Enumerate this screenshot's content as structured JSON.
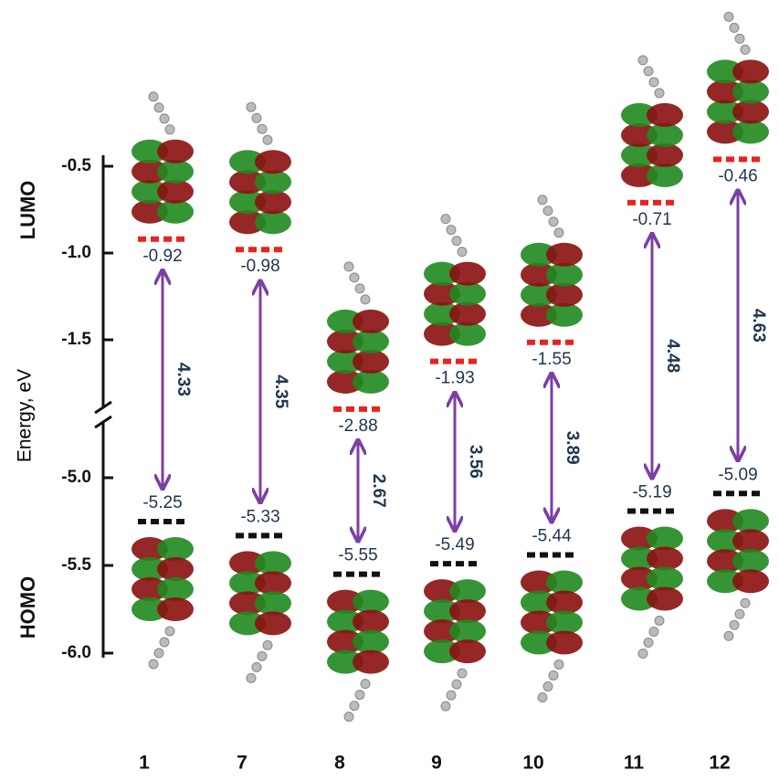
{
  "chart_data": {
    "type": "energy-levels",
    "y_axis_label": "Energy, eV",
    "upper_label": "LUMO",
    "lower_label": "HOMO",
    "ylim": [
      -6.0,
      -0.3
    ],
    "axis_break": [
      -3.0,
      -5.0
    ],
    "yticks": [
      {
        "value": -6.0,
        "label": "-6.0"
      },
      {
        "value": -5.5,
        "label": "-5.5"
      },
      {
        "value": -5.0,
        "label": "-5.0"
      },
      {
        "value": -1.5,
        "label": "-1.5"
      },
      {
        "value": -1.0,
        "label": "-1.0"
      },
      {
        "value": -0.5,
        "label": "-0.5"
      }
    ],
    "categories": [
      "1",
      "7",
      "8",
      "9",
      "10",
      "11",
      "12"
    ],
    "series": [
      {
        "name": "LUMO",
        "color": "#e8231f",
        "values": [
          -0.92,
          -0.98,
          -2.88,
          -1.93,
          -1.55,
          -0.71,
          -0.46
        ]
      },
      {
        "name": "HOMO",
        "color": "#111111",
        "values": [
          -5.25,
          -5.33,
          -5.55,
          -5.49,
          -5.44,
          -5.19,
          -5.09
        ]
      }
    ],
    "gaps": {
      "color": "#7b3fa6",
      "values": [
        4.33,
        4.35,
        2.67,
        3.56,
        3.89,
        4.48,
        4.63
      ]
    }
  }
}
